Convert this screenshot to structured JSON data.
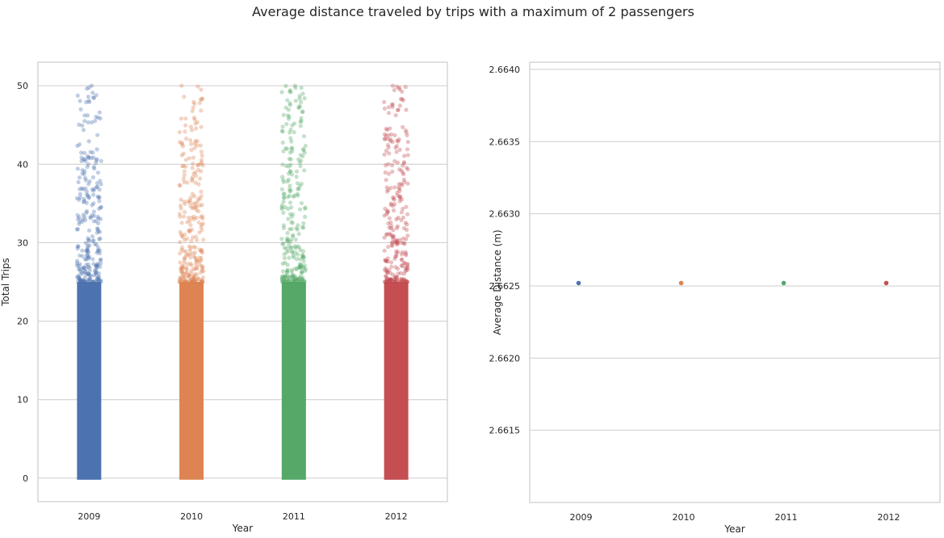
{
  "title": "Average distance traveled by trips with a maximum of 2 passengers",
  "palette": [
    "#4c72b0",
    "#dd8452",
    "#55a868",
    "#c44e52"
  ],
  "chart_data": [
    {
      "type": "scatter",
      "subtype": "strip",
      "categories": [
        "2009",
        "2010",
        "2011",
        "2012"
      ],
      "xlabel": "Year",
      "ylabel": "Total Trips",
      "ylim": [
        -3,
        53
      ],
      "yticks": [
        0,
        10,
        20,
        30,
        40,
        50
      ],
      "ytick_labels": [
        "0",
        "10",
        "20",
        "30",
        "40",
        "50"
      ],
      "grid": true,
      "point_alpha": 0.35,
      "distribution": {
        "dense_range": [
          0,
          25
        ],
        "sparse_range": [
          25,
          50
        ],
        "max_values": [
          50,
          50,
          50,
          50
        ]
      }
    },
    {
      "type": "scatter",
      "subtype": "strip",
      "categories": [
        "2009",
        "2010",
        "2011",
        "2012"
      ],
      "values": [
        2.66252,
        2.66252,
        2.66252,
        2.66252
      ],
      "xlabel": "Year",
      "ylabel": "Average Distance (m)",
      "ylim": [
        2.661,
        2.66405
      ],
      "yticks": [
        2.6615,
        2.662,
        2.6625,
        2.663,
        2.6635,
        2.664
      ],
      "ytick_labels": [
        "2.6615",
        "2.6620",
        "2.6625",
        "2.6630",
        "2.6635",
        "2.6640"
      ],
      "grid": true
    }
  ]
}
